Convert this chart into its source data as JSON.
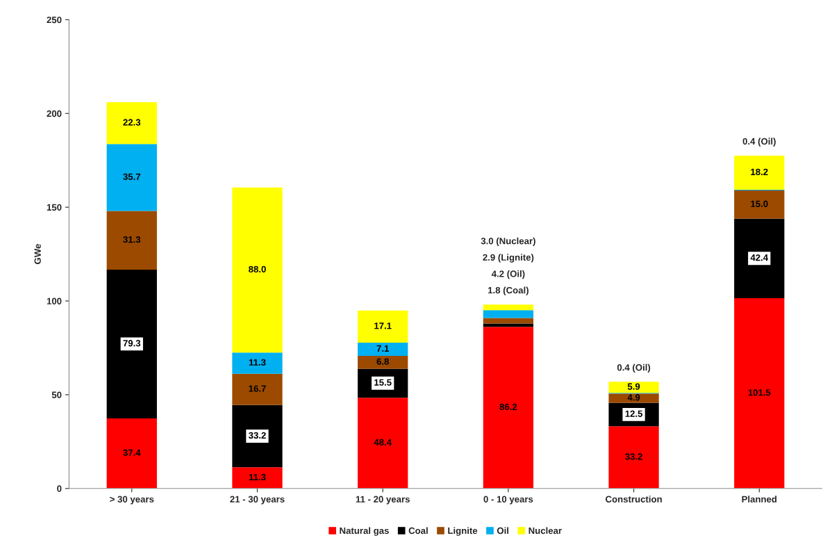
{
  "chart_data": {
    "type": "bar",
    "stacked": true,
    "ylabel": "GWe",
    "categories": [
      "> 30 years",
      "21 - 30 years",
      "11 - 20 years",
      "0 - 10 years",
      "Construction",
      "Planned"
    ],
    "series": [
      {
        "name": "Natural gas",
        "color": "#ff0000",
        "values": [
          37.4,
          11.3,
          48.4,
          86.2,
          33.2,
          101.5
        ],
        "value_labels": [
          "37.4",
          "11.3",
          "48.4",
          "86.2",
          "33.2",
          "101.5"
        ]
      },
      {
        "name": "Coal",
        "color": "#000000",
        "values": [
          79.3,
          33.2,
          15.5,
          1.8,
          12.5,
          42.4
        ],
        "value_labels": [
          "79.3",
          "33.2",
          "15.5",
          null,
          "12.5",
          "42.4"
        ]
      },
      {
        "name": "Lignite",
        "color": "#9c4a00",
        "values": [
          31.3,
          16.7,
          6.8,
          2.9,
          4.9,
          15.0
        ],
        "value_labels": [
          "31.3",
          "16.7",
          "6.8",
          null,
          "4.9",
          "15.0"
        ]
      },
      {
        "name": "Oil",
        "color": "#00b0f0",
        "values": [
          35.7,
          11.3,
          7.1,
          4.2,
          0.4,
          0.4
        ],
        "value_labels": [
          "35.7",
          "11.3",
          "7.1",
          null,
          null,
          null
        ]
      },
      {
        "name": "Nuclear",
        "color": "#ffff00",
        "values": [
          22.3,
          88.0,
          17.1,
          3.0,
          5.9,
          18.2
        ],
        "value_labels": [
          "22.3",
          "88.0",
          "17.1",
          null,
          "5.9",
          "18.2"
        ]
      }
    ],
    "annotations": [
      "1.8 (Coal)",
      "4.2 (Oil)",
      "2.9 (Lignite)",
      "3.0 (Nuclear)",
      "0.4 (Oil)",
      "0.4 (Oil)"
    ],
    "ylim": [
      0,
      250
    ],
    "yticks": [
      0,
      50,
      100,
      150,
      200,
      250
    ],
    "grid": false,
    "legend": "bottom"
  }
}
